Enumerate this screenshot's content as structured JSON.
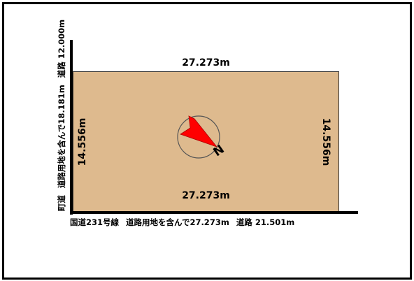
{
  "plot": {
    "top_dimension": "27.273m",
    "bottom_dimension": "27.273m",
    "left_dimension": "14.556m",
    "right_dimension": "14.556m"
  },
  "roads": {
    "left_part1": "町道",
    "left_part2": "道路用地を含んで18.181m",
    "left_part3": "道路 12.000m",
    "bottom_part1": "国道231号線",
    "bottom_part2": "道路用地を含んで27.273m",
    "bottom_part3": "道路 21.501m"
  },
  "compass": {
    "north_label": "N",
    "arrow_color": "#ff0000"
  },
  "colors": {
    "lot_fill": "#deba8e"
  }
}
